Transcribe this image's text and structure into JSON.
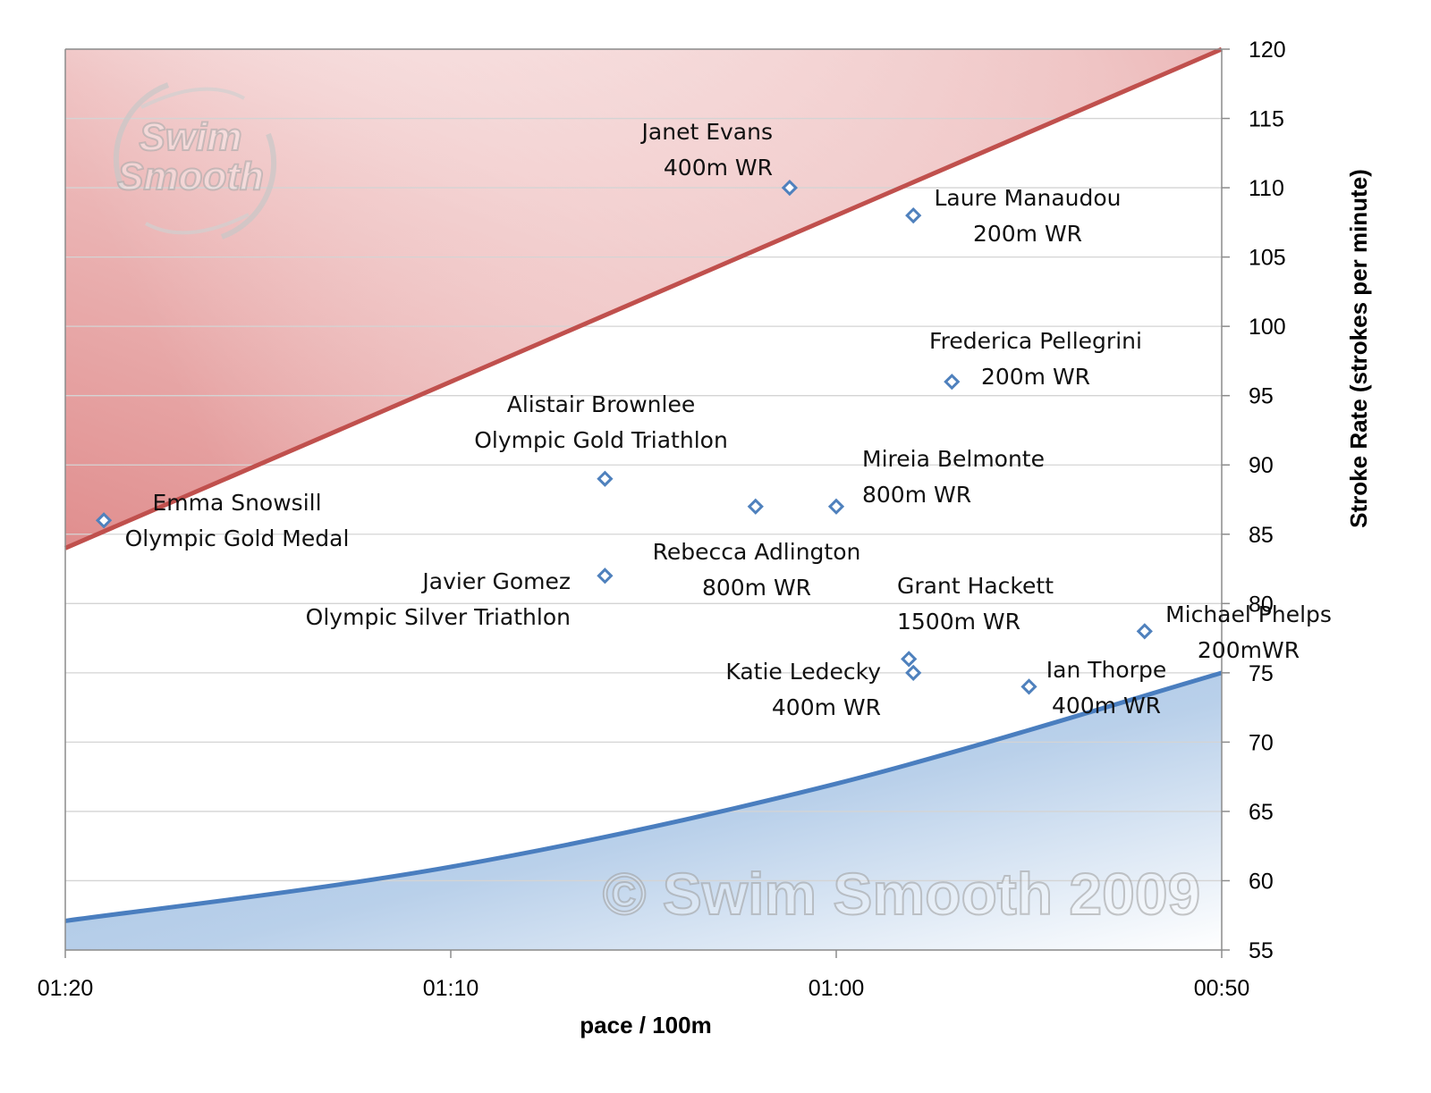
{
  "chart_data": {
    "type": "scatter",
    "xlabel": "pace / 100m",
    "ylabel": "Stroke Rate (strokes per minute)",
    "x_axis": {
      "range": [
        "01:20",
        "00:50"
      ],
      "reversed": true,
      "ticks": [
        "01:20",
        "01:10",
        "01:00",
        "00:50"
      ]
    },
    "y_axis": {
      "range": [
        55,
        120
      ],
      "position": "right",
      "ticks": [
        "55",
        "60",
        "65",
        "70",
        "75",
        "80",
        "85",
        "90",
        "95",
        "100",
        "105",
        "110",
        "115",
        "120"
      ]
    },
    "grid": true,
    "points": [
      {
        "name": "Emma Snowsill",
        "detail": "Olympic Gold Medal",
        "x": "01:19",
        "y": 86
      },
      {
        "name": "Alistair Brownlee",
        "detail": "Olympic Gold Triathlon",
        "x": "01:06",
        "y": 89
      },
      {
        "name": "Javier Gomez",
        "detail": "Olympic Silver Triathlon",
        "x": "01:06",
        "y": 82
      },
      {
        "name": "Rebecca Adlington",
        "detail": "800m WR",
        "x": "01:02",
        "y": 87
      },
      {
        "name": "Janet Evans",
        "detail": "400m WR",
        "x": "01:01",
        "y": 110
      },
      {
        "name": "Mireia Belmonte",
        "detail": "800m WR",
        "x": "01:00",
        "y": 87
      },
      {
        "name": "Grant Hackett",
        "detail": "1500m WR",
        "x": "00:58",
        "y": 76
      },
      {
        "name": "Katie Ledecky",
        "detail": "400m WR",
        "x": "00:58",
        "y": 75
      },
      {
        "name": "Laure Manaudou",
        "detail": "200m WR",
        "x": "00:58",
        "y": 108
      },
      {
        "name": "Frederica Pellegrini",
        "detail": "200m WR",
        "x": "00:57",
        "y": 96
      },
      {
        "name": "Ian Thorpe",
        "detail": "400m WR",
        "x": "00:55",
        "y": 74
      },
      {
        "name": "Michael Phelps",
        "detail": "200mWR",
        "x": "00:52",
        "y": 78
      }
    ],
    "upper_boundary": {
      "type": "straight line",
      "from": {
        "x": "01:20",
        "y": 84
      },
      "to": {
        "x": "00:50",
        "y": 120
      },
      "color": "#c0504d",
      "fill": "#e8a8a8"
    },
    "lower_boundary": {
      "type": "curve",
      "values": [
        {
          "x": "01:20",
          "y": 57.1
        },
        {
          "x": "01:10",
          "y": 61.0
        },
        {
          "x": "01:00",
          "y": 67.0
        },
        {
          "x": "00:50",
          "y": 75.0
        }
      ],
      "color": "#4a7ebf",
      "fill": "#a9c5e3"
    },
    "marker_color": "#4f81bd",
    "watermark": "© Swim Smooth 2009",
    "logo": [
      "Swim",
      "Smooth"
    ]
  }
}
